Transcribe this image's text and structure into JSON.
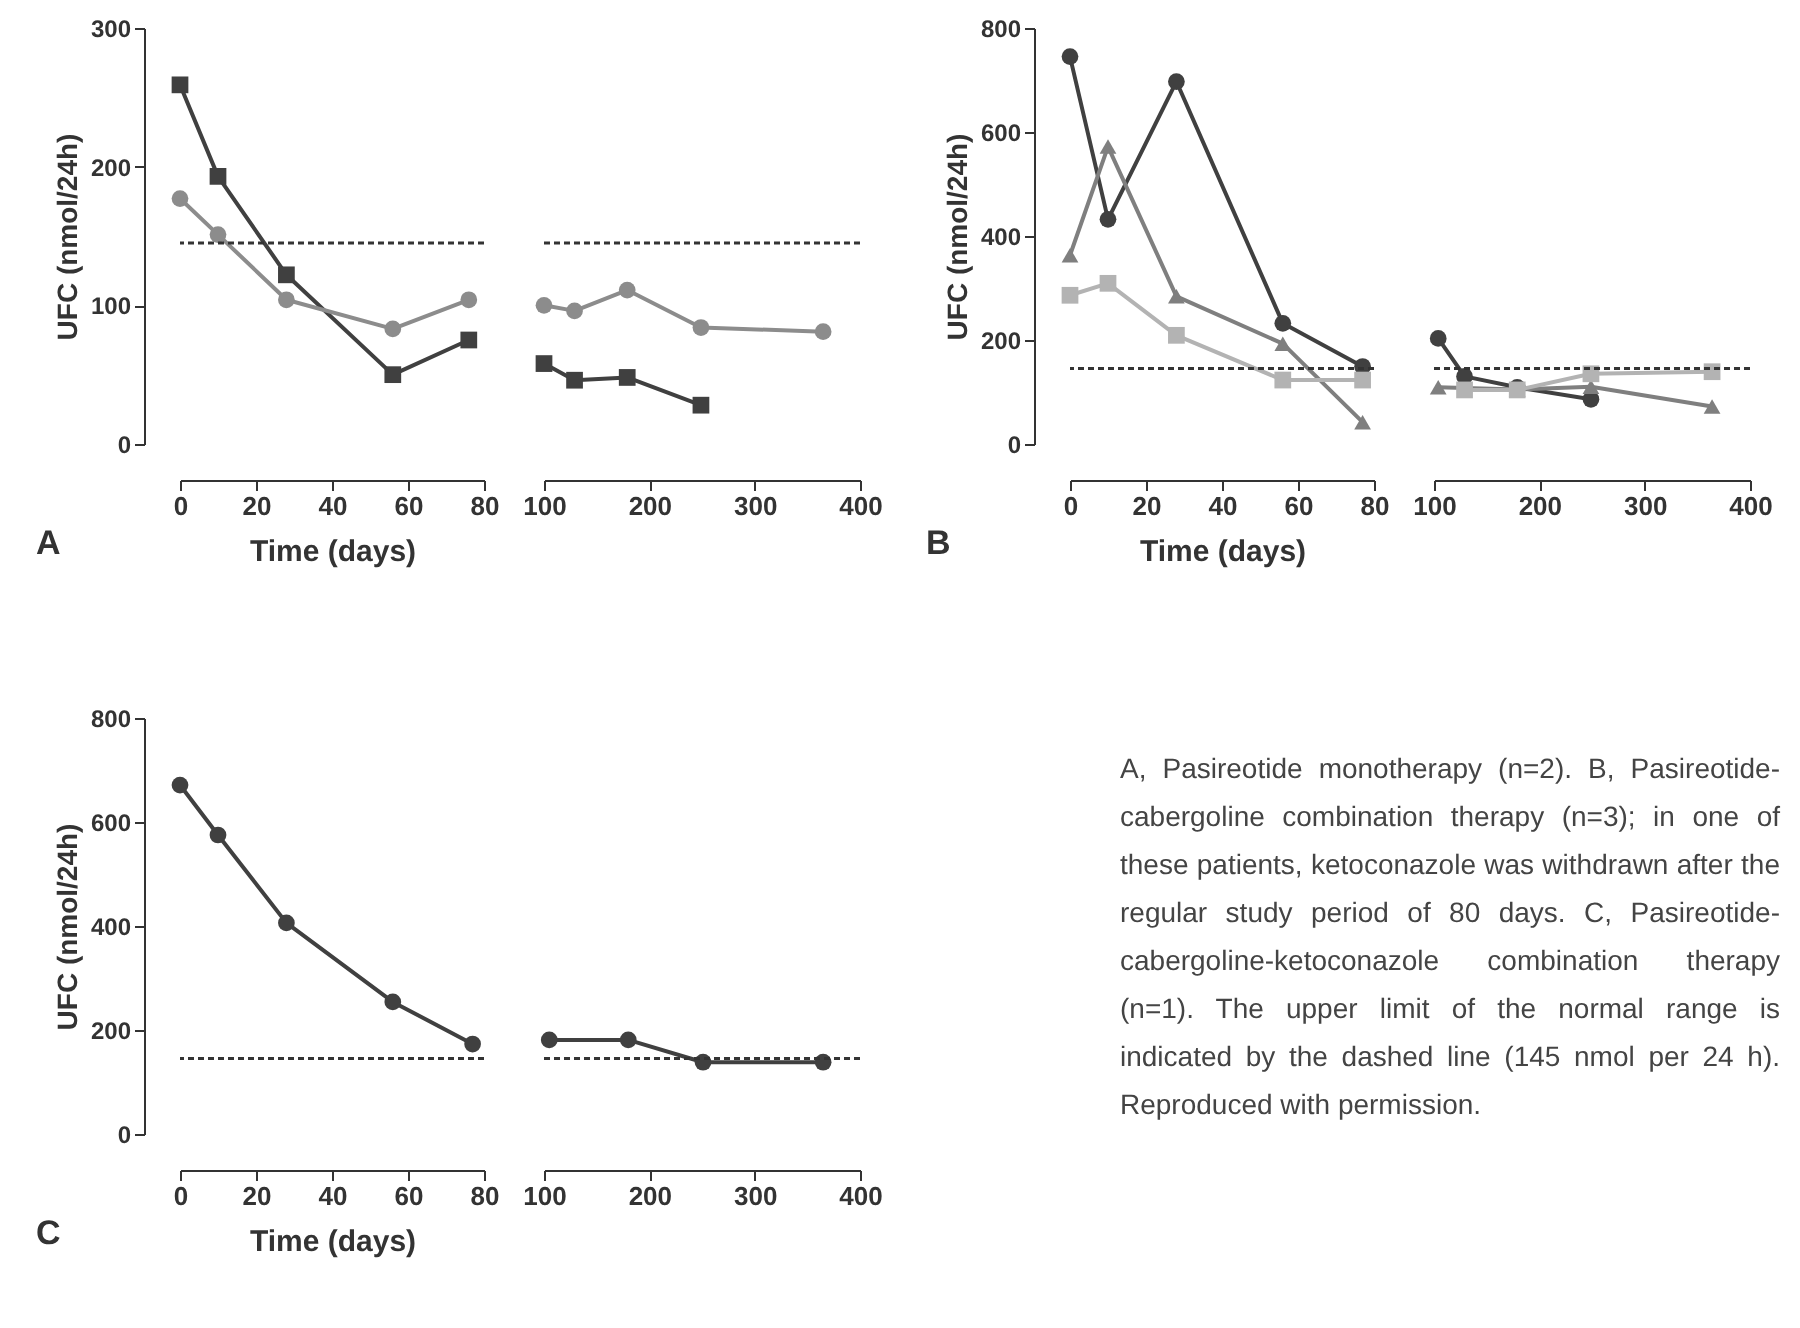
{
  "chart_data": [
    {
      "type": "line",
      "xlabel": "Time (days)",
      "ylabel": "UFC (nmol/24h)",
      "annotations": [
        "A"
      ],
      "xlim": [
        0,
        80
      ],
      "xticks": [
        0,
        20,
        40,
        60,
        80
      ],
      "ylim": [
        0,
        300
      ],
      "yticks": [
        0,
        100,
        200,
        300
      ],
      "ref_lines": [
        {
          "axis": "y",
          "value": 145,
          "line_style": "dotted",
          "color": "#333333"
        }
      ],
      "series": [
        {
          "color": "#404040",
          "marker": "square",
          "x": [
            0,
            10,
            28,
            56,
            76
          ],
          "values": [
            259,
            193,
            122,
            50,
            75
          ]
        },
        {
          "color": "#8c8c8c",
          "marker": "circle",
          "x": [
            0,
            10,
            28,
            56,
            76
          ],
          "values": [
            177,
            151,
            104,
            83,
            104
          ]
        }
      ]
    },
    {
      "type": "line",
      "tick_labels": "x",
      "xlim": [
        100,
        400
      ],
      "xticks": [
        100,
        200,
        300,
        400
      ],
      "ylim": [
        0,
        300
      ],
      "ref_lines": [
        {
          "axis": "y",
          "value": 145,
          "line_style": "dotted",
          "color": "#333333"
        }
      ],
      "series": [
        {
          "color": "#404040",
          "marker": "square",
          "x": [
            100,
            129,
            179,
            249
          ],
          "values": [
            58,
            46,
            48,
            28
          ]
        },
        {
          "color": "#8c8c8c",
          "marker": "circle",
          "x": [
            100,
            129,
            179,
            249,
            365
          ],
          "values": [
            100,
            96,
            111,
            84,
            81
          ]
        }
      ]
    },
    {
      "type": "line",
      "xlabel": "Time (days)",
      "ylabel": "UFC (nmol/24h)",
      "annotations": [
        "B"
      ],
      "xlim": [
        0,
        80
      ],
      "xticks": [
        0,
        20,
        40,
        60,
        80
      ],
      "ylim": [
        0,
        800
      ],
      "yticks": [
        0,
        200,
        400,
        600,
        800
      ],
      "ref_lines": [
        {
          "axis": "y",
          "value": 145,
          "line_style": "dotted",
          "color": "#333333"
        }
      ],
      "series": [
        {
          "color": "#404040",
          "marker": "circle",
          "x": [
            0,
            10,
            28,
            56,
            77
          ],
          "values": [
            745,
            432,
            697,
            232,
            149
          ]
        },
        {
          "color": "#7f7f7f",
          "marker": "triangle",
          "x": [
            0,
            10,
            28,
            56,
            77
          ],
          "values": [
            363,
            572,
            284,
            193,
            42
          ]
        },
        {
          "color": "#b3b3b3",
          "marker": "square",
          "x": [
            0,
            10,
            28,
            56,
            77
          ],
          "values": [
            286,
            309,
            209,
            123,
            123
          ]
        }
      ]
    },
    {
      "type": "line",
      "tick_labels": "x",
      "xlim": [
        100,
        400
      ],
      "xticks": [
        100,
        200,
        300,
        400
      ],
      "ylim": [
        0,
        800
      ],
      "ref_lines": [
        {
          "axis": "y",
          "value": 145,
          "line_style": "dotted",
          "color": "#333333"
        }
      ],
      "series": [
        {
          "color": "#404040",
          "marker": "circle",
          "x": [
            104,
            129,
            179,
            249
          ],
          "values": [
            203,
            130,
            109,
            86
          ]
        },
        {
          "color": "#7f7f7f",
          "marker": "triangle",
          "x": [
            104,
            179,
            249,
            364
          ],
          "values": [
            109,
            105,
            110,
            72
          ]
        },
        {
          "color": "#b3b3b3",
          "marker": "square",
          "x": [
            129,
            179,
            249,
            364
          ],
          "values": [
            104,
            104,
            135,
            139
          ]
        }
      ]
    },
    {
      "type": "line",
      "xlabel": "Time (days)",
      "ylabel": "UFC (nmol/24h)",
      "annotations": [
        "C"
      ],
      "xlim": [
        0,
        80
      ],
      "xticks": [
        0,
        20,
        40,
        60,
        80
      ],
      "ylim": [
        0,
        800
      ],
      "yticks": [
        0,
        200,
        400,
        600,
        800
      ],
      "ref_lines": [
        {
          "axis": "y",
          "value": 145,
          "line_style": "dotted",
          "color": "#333333"
        }
      ],
      "series": [
        {
          "color": "#404040",
          "marker": "circle",
          "x": [
            0,
            10,
            28,
            56,
            77
          ],
          "values": [
            671,
            575,
            406,
            254,
            173
          ]
        }
      ]
    },
    {
      "type": "line",
      "tick_labels": "x",
      "xlim": [
        100,
        400
      ],
      "xticks": [
        100,
        200,
        300,
        400
      ],
      "ylim": [
        0,
        800
      ],
      "ref_lines": [
        {
          "axis": "y",
          "value": 145,
          "line_style": "dotted",
          "color": "#333333"
        }
      ],
      "series": [
        {
          "color": "#404040",
          "marker": "circle",
          "x": [
            105,
            180,
            251,
            365
          ],
          "values": [
            181,
            181,
            138,
            138
          ]
        }
      ]
    },
    {
      "type": "other",
      "annotations": [
        "A, Pasireotide monotherapy (n=2). B, Pasireotide-cabergoline combination therapy (n=3); in one of these patients, ketoconazole was withdrawn after the regular study period of 80 days. C, Pasireotide-cabergoline-ketoconazole combination therapy (n=1). The upper limit of the normal range is indicated by the dashed line (145 nmol per 24 h). Reproduced with permission."
      ]
    }
  ]
}
